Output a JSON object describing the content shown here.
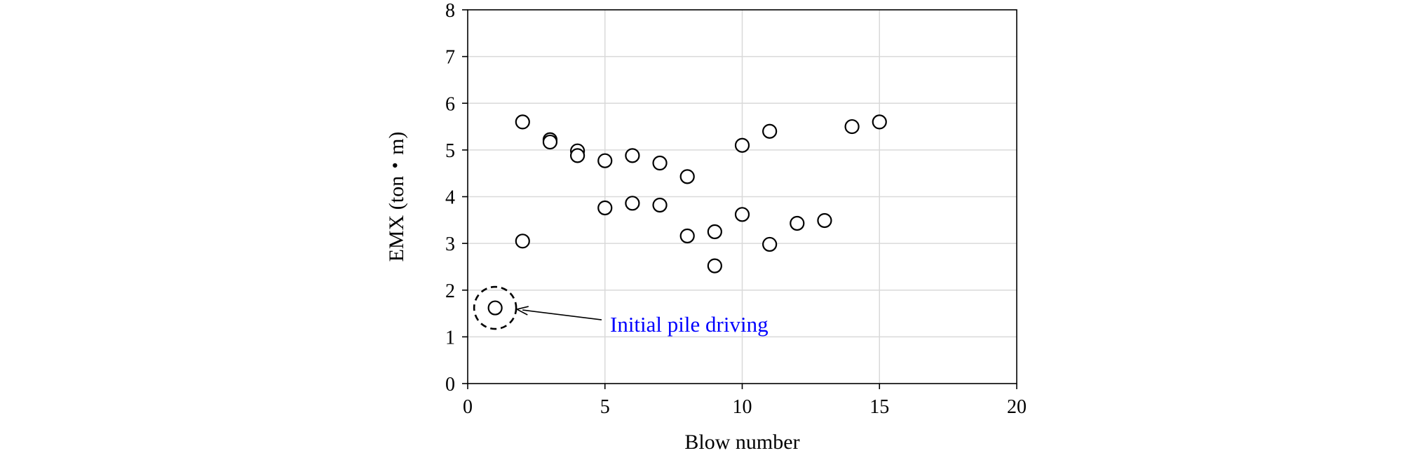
{
  "chart_data": {
    "type": "scatter",
    "title": "",
    "xlabel": "Blow number",
    "ylabel": "EMX (ton・m)",
    "xlim": [
      0,
      20
    ],
    "ylim": [
      0,
      8
    ],
    "x_ticks": [
      0,
      5,
      10,
      15,
      20
    ],
    "y_ticks": [
      0,
      1,
      2,
      3,
      4,
      5,
      6,
      7,
      8
    ],
    "grid": true,
    "legend": "none",
    "marker": "open-circle",
    "colors": {
      "marker": "#000000",
      "grid": "#d9d9d9",
      "axis": "#000000",
      "annotation_text": "#0000ff",
      "annotation_arrow": "#000000"
    },
    "series": [
      {
        "points": [
          {
            "x": 1,
            "y": 1.62
          },
          {
            "x": 2,
            "y": 5.6
          },
          {
            "x": 2,
            "y": 3.05
          },
          {
            "x": 3,
            "y": 5.22
          },
          {
            "x": 3,
            "y": 5.17
          },
          {
            "x": 4,
            "y": 4.98
          },
          {
            "x": 4,
            "y": 4.88
          },
          {
            "x": 5,
            "y": 4.77
          },
          {
            "x": 5,
            "y": 3.76
          },
          {
            "x": 6,
            "y": 4.88
          },
          {
            "x": 6,
            "y": 3.86
          },
          {
            "x": 7,
            "y": 4.72
          },
          {
            "x": 7,
            "y": 3.82
          },
          {
            "x": 8,
            "y": 4.43
          },
          {
            "x": 8,
            "y": 3.16
          },
          {
            "x": 9,
            "y": 3.25
          },
          {
            "x": 9,
            "y": 2.52
          },
          {
            "x": 10,
            "y": 5.1
          },
          {
            "x": 10,
            "y": 3.62
          },
          {
            "x": 11,
            "y": 5.4
          },
          {
            "x": 11,
            "y": 2.98
          },
          {
            "x": 12,
            "y": 3.43
          },
          {
            "x": 13,
            "y": 3.49
          },
          {
            "x": 14,
            "y": 5.5
          },
          {
            "x": 15,
            "y": 5.6
          }
        ]
      }
    ],
    "annotations": [
      {
        "text": "Initial pile driving",
        "target": {
          "x": 1,
          "y": 1.62
        },
        "style": "dashed-circle-with-arrow"
      }
    ]
  }
}
